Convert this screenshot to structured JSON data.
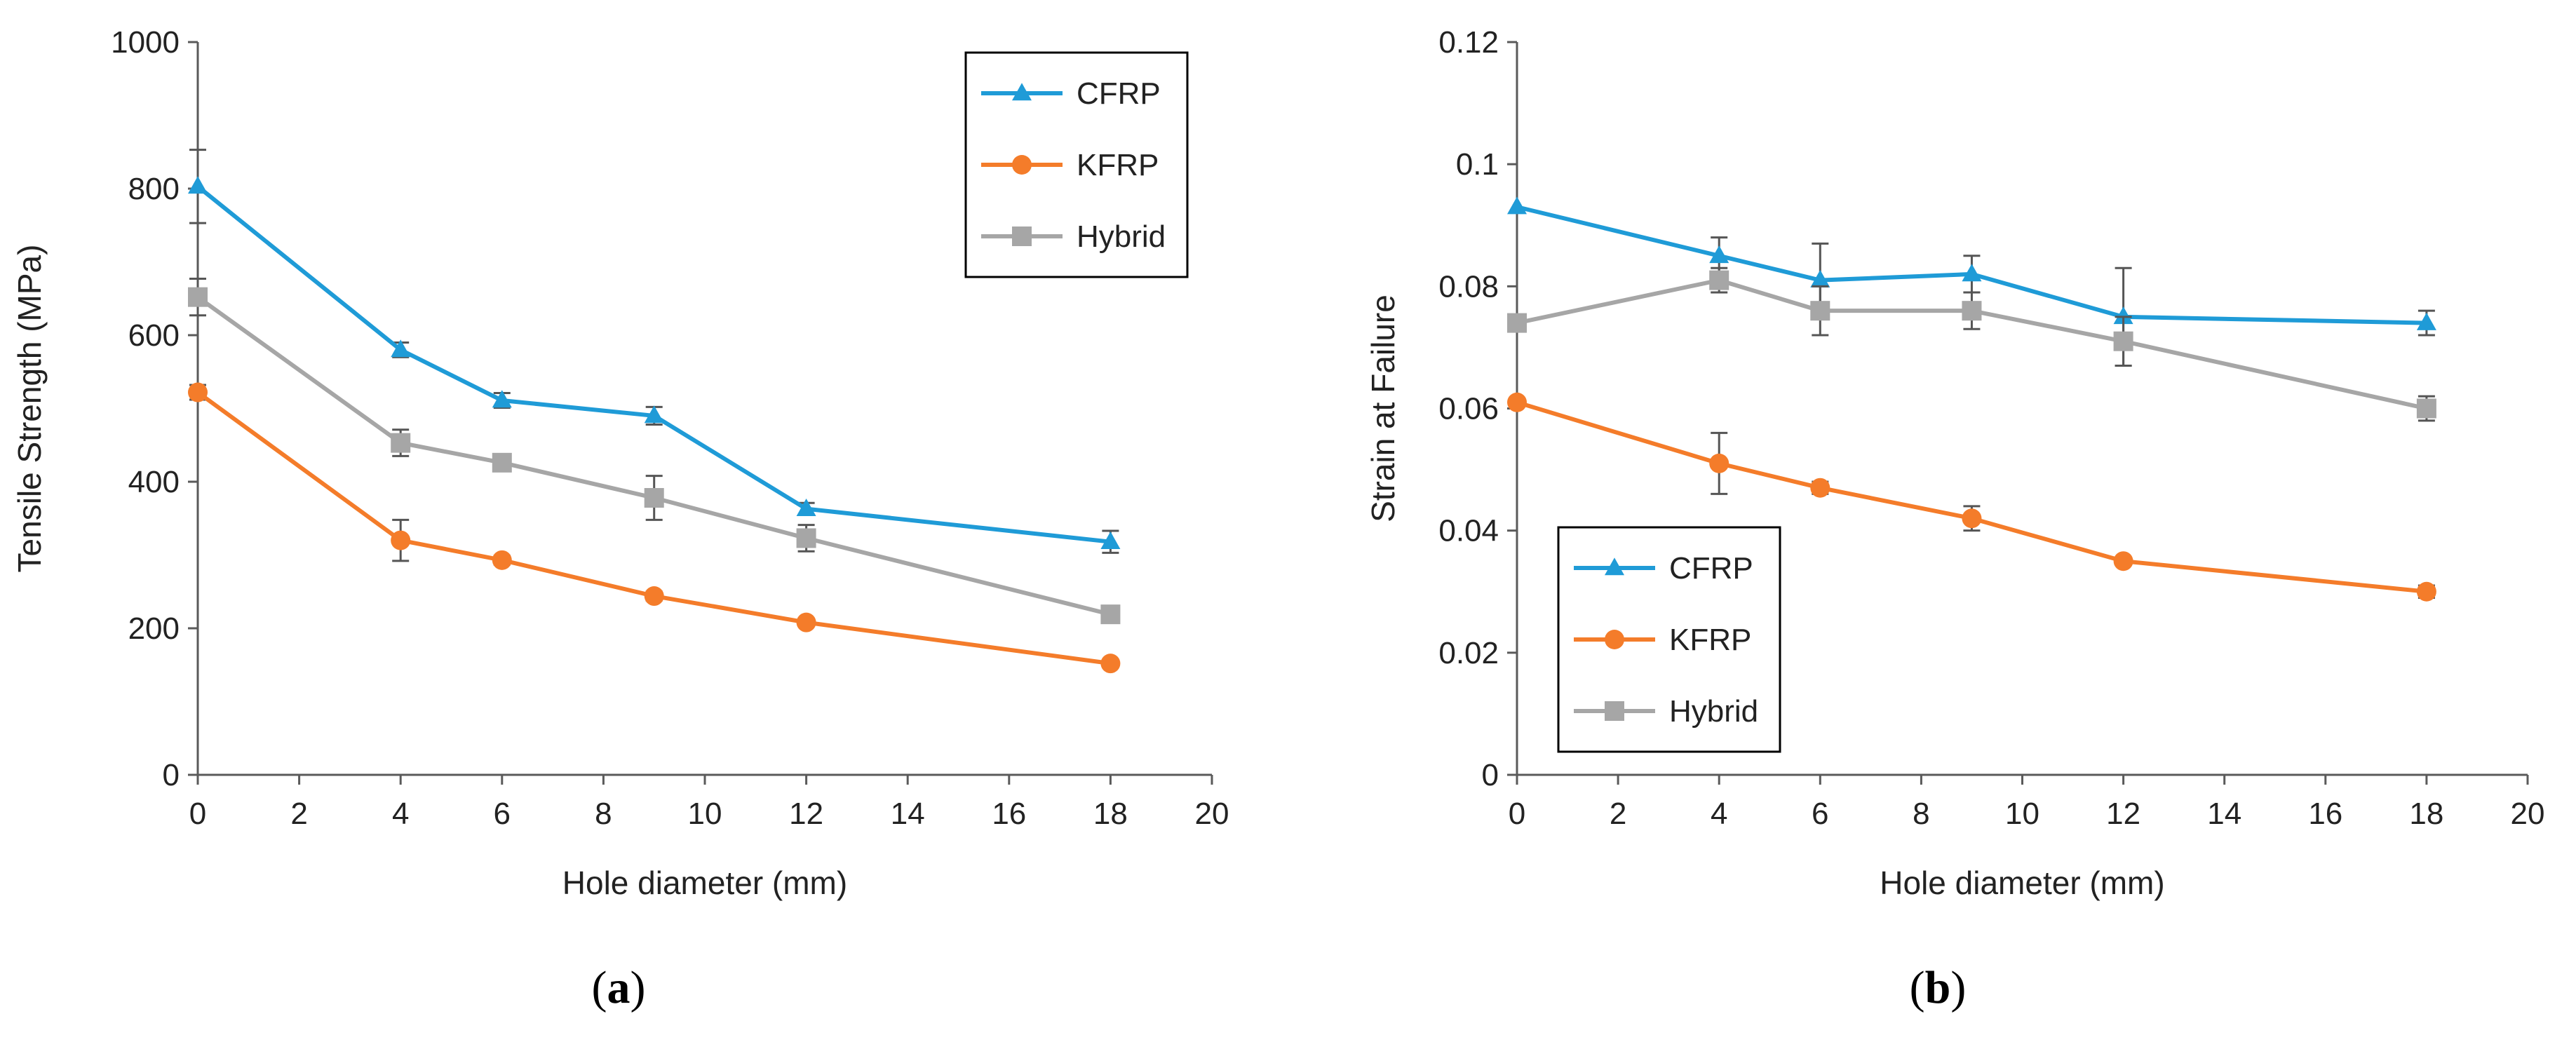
{
  "chart_data": [
    {
      "type": "line",
      "panel": "a",
      "caption": {
        "open": "(",
        "letter": "a",
        "close": ")"
      },
      "xlabel": "Hole diameter (mm)",
      "ylabel": "Tensile Strength (MPa)",
      "xlim": [
        0,
        20
      ],
      "ylim": [
        0,
        1000
      ],
      "xticks": [
        0,
        2,
        4,
        6,
        8,
        10,
        12,
        14,
        16,
        18,
        20
      ],
      "yticks": [
        0,
        200,
        400,
        600,
        800,
        1000
      ],
      "ytick_labels": [
        "0",
        "200",
        "400",
        "600",
        "800",
        "1000"
      ],
      "grid": false,
      "legend_position": "top-right",
      "x": [
        0,
        4,
        6,
        9,
        12,
        18
      ],
      "series": [
        {
          "name": "CFRP",
          "color": "#1f9bd7",
          "marker": "triangle",
          "values": [
            803,
            580,
            511,
            490,
            363,
            318
          ],
          "errors": [
            50,
            10,
            10,
            12,
            8,
            15
          ]
        },
        {
          "name": "KFRP",
          "color": "#f47c2a",
          "marker": "circle",
          "values": [
            522,
            320,
            293,
            244,
            208,
            152
          ],
          "errors": [
            10,
            28,
            6,
            6,
            5,
            5
          ]
        },
        {
          "name": "Hybrid",
          "color": "#a6a6a6",
          "marker": "square",
          "values": [
            652,
            453,
            426,
            378,
            323,
            219
          ],
          "errors": [
            25,
            18,
            10,
            30,
            18,
            5
          ]
        }
      ]
    },
    {
      "type": "line",
      "panel": "b",
      "caption": {
        "open": "(",
        "letter": "b",
        "close": ")"
      },
      "xlabel": "Hole diameter (mm)",
      "ylabel": "Strain at Failure",
      "xlim": [
        0,
        20
      ],
      "ylim": [
        0,
        0.12
      ],
      "xticks": [
        0,
        2,
        4,
        6,
        8,
        10,
        12,
        14,
        16,
        18,
        20
      ],
      "yticks": [
        0,
        0.02,
        0.04,
        0.06,
        0.08,
        0.1,
        0.12
      ],
      "ytick_labels": [
        "0",
        "0.02",
        "0.04",
        "0.06",
        "0.08",
        "0.1",
        "0.12"
      ],
      "grid": false,
      "legend_position": "bottom-left",
      "x": [
        0,
        4,
        6,
        9,
        12,
        18
      ],
      "series": [
        {
          "name": "CFRP",
          "color": "#1f9bd7",
          "marker": "triangle",
          "values": [
            0.093,
            0.085,
            0.081,
            0.082,
            0.075,
            0.074
          ],
          "errors": [
            0.0,
            0.003,
            0.006,
            0.003,
            0.008,
            0.002
          ]
        },
        {
          "name": "KFRP",
          "color": "#f47c2a",
          "marker": "circle",
          "values": [
            0.061,
            0.051,
            0.047,
            0.042,
            0.035,
            0.03
          ],
          "errors": [
            0.0,
            0.005,
            0.001,
            0.002,
            0.0,
            0.001
          ]
        },
        {
          "name": "Hybrid",
          "color": "#a6a6a6",
          "marker": "square",
          "values": [
            0.074,
            0.081,
            0.076,
            0.076,
            0.071,
            0.06
          ],
          "errors": [
            0.0,
            0.002,
            0.004,
            0.003,
            0.004,
            0.002
          ]
        }
      ]
    }
  ]
}
